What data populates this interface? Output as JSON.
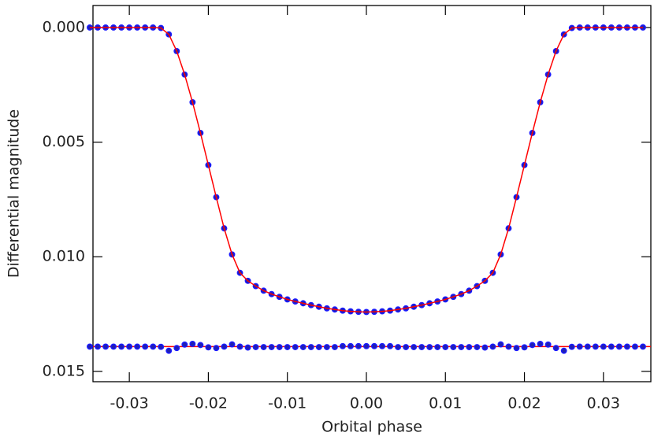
{
  "chart_data": {
    "type": "scatter",
    "x_label": "Orbital phase",
    "y_label": "Differential magnitude",
    "xlim": [
      -0.0346,
      0.036
    ],
    "ylim": [
      -0.00096,
      0.01545
    ],
    "y_inverted": true,
    "xticks": [
      -0.03,
      -0.02,
      -0.01,
      {
        "value": 0,
        "label": "0.00"
      },
      0.01,
      0.02,
      0.03
    ],
    "yticks": [
      {
        "value": 0,
        "label": "0.000"
      },
      0.005,
      {
        "value": 0.01,
        "label": "0.010"
      },
      {
        "value": 0.015,
        "label": "0.015"
      }
    ],
    "x": [
      -0.035,
      -0.034,
      -0.033,
      -0.032,
      -0.031,
      -0.03,
      -0.029,
      -0.028,
      -0.027,
      -0.026,
      -0.025,
      -0.024,
      -0.023,
      -0.022,
      -0.021,
      -0.02,
      -0.019,
      -0.018,
      -0.017,
      -0.016,
      -0.015,
      -0.014,
      -0.013,
      -0.012,
      -0.011,
      -0.01,
      -0.009,
      -0.008,
      -0.007,
      -0.006,
      -0.005,
      -0.004,
      -0.003,
      -0.002,
      -0.001,
      0,
      0.001,
      0.002,
      0.003,
      0.004,
      0.005,
      0.006,
      0.007,
      0.008,
      0.009,
      0.01,
      0.011,
      0.012,
      0.013,
      0.014,
      0.015,
      0.016,
      0.017,
      0.018,
      0.019,
      0.02,
      0.021,
      0.022,
      0.023,
      0.024,
      0.025,
      0.026,
      0.027,
      0.028,
      0.029,
      0.03,
      0.031,
      0.032,
      0.033,
      0.034,
      0.035
    ],
    "series": [
      {
        "style": "points",
        "color": "#1a1aff",
        "values": [
          0,
          0,
          0,
          0,
          0,
          0,
          0,
          0,
          0,
          2e-05,
          0.0003,
          0.00103,
          0.00205,
          0.00326,
          0.0046,
          0.006,
          0.0074,
          0.00876,
          0.0099,
          0.0107,
          0.01105,
          0.01128,
          0.01148,
          0.01163,
          0.01175,
          0.01186,
          0.01195,
          0.01203,
          0.01211,
          0.01218,
          0.01225,
          0.0123,
          0.01235,
          0.01238,
          0.0124,
          0.01241,
          0.0124,
          0.01238,
          0.01235,
          0.0123,
          0.01225,
          0.01218,
          0.01211,
          0.01203,
          0.01195,
          0.01186,
          0.01175,
          0.01163,
          0.01148,
          0.01128,
          0.01105,
          0.0107,
          0.0099,
          0.00876,
          0.0074,
          0.006,
          0.0046,
          0.00326,
          0.00205,
          0.00103,
          0.0003,
          2e-05,
          0,
          0,
          0,
          0,
          0,
          0,
          0,
          0,
          0
        ]
      },
      {
        "style": "line",
        "color": "#ff0000",
        "values": [
          0,
          0,
          0,
          0,
          0,
          0,
          0,
          0,
          0,
          2e-05,
          0.0003,
          0.00103,
          0.00205,
          0.00326,
          0.0046,
          0.006,
          0.0074,
          0.00876,
          0.0099,
          0.0107,
          0.01105,
          0.01128,
          0.01148,
          0.01163,
          0.01175,
          0.01186,
          0.01195,
          0.01203,
          0.01211,
          0.01218,
          0.01225,
          0.0123,
          0.01235,
          0.01238,
          0.0124,
          0.01241,
          0.0124,
          0.01238,
          0.01235,
          0.0123,
          0.01225,
          0.01218,
          0.01211,
          0.01203,
          0.01195,
          0.01186,
          0.01175,
          0.01163,
          0.01148,
          0.01128,
          0.01105,
          0.0107,
          0.0099,
          0.00876,
          0.0074,
          0.006,
          0.0046,
          0.00326,
          0.00205,
          0.00103,
          0.0003,
          2e-05,
          0,
          0,
          0,
          0,
          0,
          0,
          0,
          0,
          0
        ]
      },
      {
        "style": "points",
        "color": "#1a1aff",
        "values": [
          0.01392,
          0.01392,
          0.01392,
          0.01392,
          0.01392,
          0.01392,
          0.01392,
          0.01392,
          0.01392,
          0.01393,
          0.0141,
          0.01398,
          0.01383,
          0.0138,
          0.01385,
          0.01395,
          0.01398,
          0.01392,
          0.01382,
          0.01392,
          0.01396,
          0.01394,
          0.01394,
          0.01394,
          0.01394,
          0.01394,
          0.01394,
          0.01394,
          0.01394,
          0.01394,
          0.01394,
          0.01394,
          0.0139,
          0.0139,
          0.0139,
          0.0139,
          0.0139,
          0.0139,
          0.0139,
          0.01394,
          0.01394,
          0.01394,
          0.01394,
          0.01394,
          0.01394,
          0.01394,
          0.01394,
          0.01394,
          0.01394,
          0.01394,
          0.01396,
          0.01392,
          0.01382,
          0.01392,
          0.01398,
          0.01395,
          0.01385,
          0.0138,
          0.01383,
          0.01398,
          0.0141,
          0.01393,
          0.01392,
          0.01392,
          0.01392,
          0.01392,
          0.01392,
          0.01392,
          0.01392,
          0.01392,
          0.01392
        ]
      }
    ],
    "residual_baseline": 0.01392,
    "residual_baseline_color": "#ff0000"
  }
}
